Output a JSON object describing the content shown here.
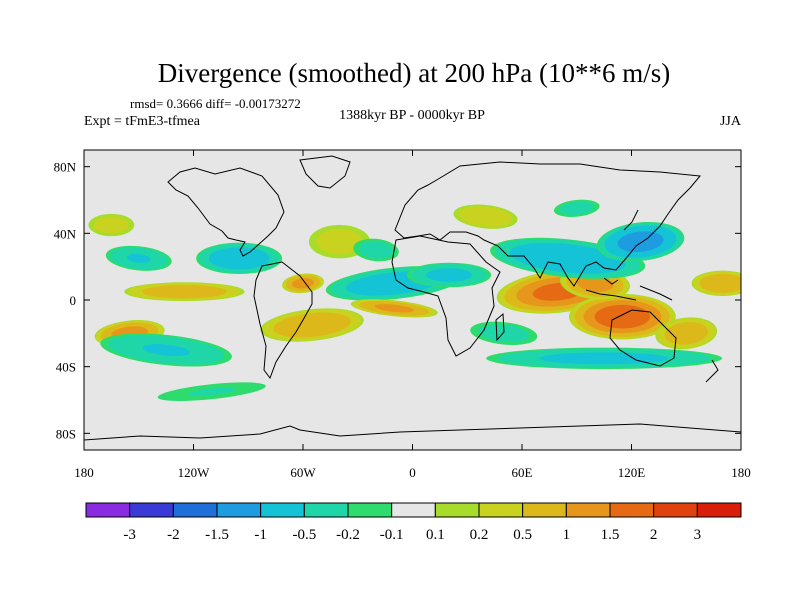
{
  "chart_data": {
    "type": "heatmap",
    "title": "Divergence (smoothed) at 200 hPa (10**6 m/s)",
    "stats_label": "rmsd= 0.3666 diff= -0.00173272",
    "experiment_label": "Expt = tFmE3-tfmea",
    "period_label": "1388kyr BP - 0000kyr BP",
    "season_label": "JJA",
    "x_ticks": [
      {
        "lon": -180,
        "label": "180"
      },
      {
        "lon": -120,
        "label": "120W"
      },
      {
        "lon": -60,
        "label": "60W"
      },
      {
        "lon": 0,
        "label": "0"
      },
      {
        "lon": 60,
        "label": "60E"
      },
      {
        "lon": 120,
        "label": "120E"
      },
      {
        "lon": 180,
        "label": "180"
      }
    ],
    "y_ticks": [
      {
        "lat": 80,
        "label": "80N"
      },
      {
        "lat": 40,
        "label": "40N"
      },
      {
        "lat": 0,
        "label": "0"
      },
      {
        "lat": -40,
        "label": "40S"
      },
      {
        "lat": -80,
        "label": "80S"
      }
    ],
    "xlim": [
      -180,
      180
    ],
    "ylim": [
      -90,
      90
    ],
    "colorbar": {
      "colors": [
        "#8a2be2",
        "#3a3ad6",
        "#1f6fd8",
        "#1e9ce0",
        "#14c3d6",
        "#1fd6a8",
        "#2edc6e",
        "#e6e6e6",
        "#a8dc2a",
        "#c9d21f",
        "#dcb81a",
        "#e6961a",
        "#e66a14",
        "#e0420f",
        "#d81e0a"
      ],
      "labels": [
        "-3",
        "-2",
        "-1.5",
        "-1",
        "-0.5",
        "-0.2",
        "-0.1",
        "0.1",
        "0.2",
        "0.5",
        "1",
        "1.5",
        "2",
        "3"
      ]
    },
    "anomaly_regions": [
      {
        "lon": 80,
        "lat": 5,
        "rx": 35,
        "ry": 13,
        "v": 1.6
      },
      {
        "lon": 115,
        "lat": -10,
        "rx": 30,
        "ry": 14,
        "v": 1.8
      },
      {
        "lon": 100,
        "lat": 10,
        "rx": 20,
        "ry": 10,
        "v": 1.2
      },
      {
        "lon": 150,
        "lat": -20,
        "rx": 18,
        "ry": 10,
        "v": 0.8
      },
      {
        "lon": 170,
        "lat": 10,
        "rx": 18,
        "ry": 8,
        "v": 0.9
      },
      {
        "lon": 85,
        "lat": 25,
        "rx": 45,
        "ry": 12,
        "v": -0.9
      },
      {
        "lon": 125,
        "lat": 35,
        "rx": 25,
        "ry": 12,
        "v": -1.2
      },
      {
        "lon": 105,
        "lat": -35,
        "rx": 70,
        "ry": 7,
        "v": -0.6
      },
      {
        "lon": 50,
        "lat": -20,
        "rx": 22,
        "ry": 8,
        "v": -0.3
      },
      {
        "lon": -10,
        "lat": 10,
        "rx": 40,
        "ry": 10,
        "v": -0.8
      },
      {
        "lon": 20,
        "lat": 15,
        "rx": 25,
        "ry": 8,
        "v": -0.6
      },
      {
        "lon": -10,
        "lat": -5,
        "rx": 25,
        "ry": 5,
        "v": 1.1
      },
      {
        "lon": -55,
        "lat": -15,
        "rx": 30,
        "ry": 10,
        "v": 0.9
      },
      {
        "lon": -95,
        "lat": 25,
        "rx": 25,
        "ry": 10,
        "v": -0.8
      },
      {
        "lon": -150,
        "lat": 25,
        "rx": 20,
        "ry": 8,
        "v": -0.5
      },
      {
        "lon": -155,
        "lat": -20,
        "rx": 20,
        "ry": 8,
        "v": 1.2
      },
      {
        "lon": -125,
        "lat": 5,
        "rx": 35,
        "ry": 6,
        "v": 0.8
      },
      {
        "lon": -135,
        "lat": -30,
        "rx": 40,
        "ry": 10,
        "v": -0.5
      },
      {
        "lon": -110,
        "lat": -55,
        "rx": 40,
        "ry": 6,
        "v": -0.2
      },
      {
        "lon": -40,
        "lat": 35,
        "rx": 20,
        "ry": 12,
        "v": 0.3
      },
      {
        "lon": -20,
        "lat": 30,
        "rx": 15,
        "ry": 8,
        "v": -0.3
      },
      {
        "lon": -60,
        "lat": 10,
        "rx": 12,
        "ry": 6,
        "v": 1.2
      },
      {
        "lon": -165,
        "lat": 45,
        "rx": 15,
        "ry": 8,
        "v": 0.3
      },
      {
        "lon": 40,
        "lat": 50,
        "rx": 20,
        "ry": 8,
        "v": 0.4
      },
      {
        "lon": 90,
        "lat": 55,
        "rx": 15,
        "ry": 6,
        "v": -0.3
      }
    ]
  }
}
